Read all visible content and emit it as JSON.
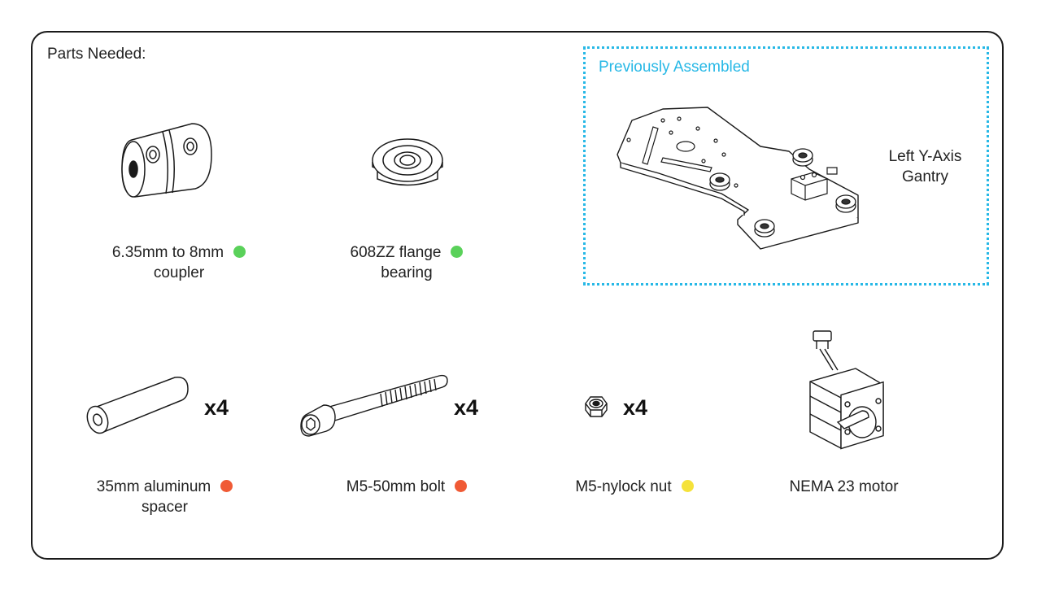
{
  "header": {
    "title": "Parts Needed:"
  },
  "previous": {
    "label": "Previously Assembled",
    "item_line1": "Left Y-Axis",
    "item_line2": "Gantry"
  },
  "colors": {
    "green": "#5ad15a",
    "orange": "#f05a35",
    "yellow": "#f5e23a",
    "dotted_border": "#27b8e6"
  },
  "parts": [
    {
      "line1": "6.35mm to 8mm",
      "line2": "coupler",
      "status_color": "green",
      "icon": "coupler-icon"
    },
    {
      "line1": "608ZZ flange",
      "line2": "bearing",
      "status_color": "green",
      "icon": "flange-bearing-icon"
    },
    {
      "line1": "35mm aluminum",
      "line2": "spacer",
      "status_color": "orange",
      "quantity": "x4",
      "icon": "spacer-icon"
    },
    {
      "line1": "M5-50mm bolt",
      "line2": "",
      "status_color": "orange",
      "quantity": "x4",
      "icon": "bolt-icon"
    },
    {
      "line1": "M5-nylock nut",
      "line2": "",
      "status_color": "yellow",
      "quantity": "x4",
      "icon": "nylock-nut-icon"
    },
    {
      "line1": "NEMA 23 motor",
      "line2": "",
      "icon": "stepper-motor-icon"
    }
  ]
}
